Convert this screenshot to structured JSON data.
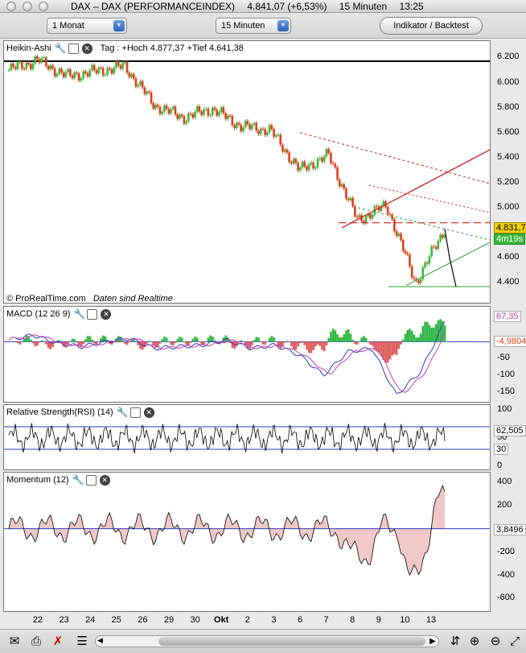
{
  "window": {
    "instrument": "DAX – DAX (PERFORMANCEINDEX)",
    "price": "4.841,07 (+6,53%)",
    "interval_label": "15 Minuten",
    "time": "13:25"
  },
  "toolbar": {
    "period": "1 Monat",
    "interval": "15 Minuten",
    "indicator_button": "Indikator / Backtest"
  },
  "price_panel": {
    "title": "Heikin-Ashi",
    "info": "Tag : +Hoch 4.877,37 +Tief 4.641,38",
    "copyright": "© ProRealTime.com",
    "realtime": "Daten sind Realtime",
    "last_value": "4.831,7",
    "countdown": "4m19s",
    "axis": [
      "6.200",
      "6.000",
      "5.800",
      "5.600",
      "5.400",
      "5.200",
      "5.000",
      "4.600",
      "4.400"
    ],
    "ylim": [
      4280,
      6280
    ]
  },
  "macd_panel": {
    "title": "MACD (12 26 9)",
    "value_upper": "67,35",
    "value_lower": "-4,9804",
    "axis": [
      "-50",
      "-100",
      "-150"
    ],
    "ylim": [
      -170,
      90
    ]
  },
  "rsi_panel": {
    "title": "Relative Strength(RSI) (14)",
    "value": "62,505",
    "upper_level": "70",
    "lower_level": "30",
    "axis": [
      "100",
      "50",
      "0"
    ]
  },
  "momentum_panel": {
    "title": "Momentum (12)",
    "value": "3,8496",
    "axis": [
      "400",
      "200",
      "-200",
      "-400",
      "-600"
    ],
    "ylim": [
      -680,
      440
    ]
  },
  "date_axis": [
    "22",
    "23",
    "24",
    "25",
    "26",
    "29",
    "30",
    "Okt",
    "2",
    "3",
    "6",
    "7",
    "8",
    "9",
    "10",
    "13"
  ],
  "colors": {
    "up": "#3db83d",
    "down": "#e03d1b",
    "macd_line": "#2a3bbf",
    "signal_line": "#c23fb0",
    "hist_pos": "#36b84a",
    "hist_neg": "#e06060",
    "grid_line": "#2a3bbf"
  },
  "chart_data": {
    "type": "line",
    "title": "Heikin-Ashi",
    "x": [
      "22",
      "23",
      "24",
      "25",
      "26",
      "29",
      "30",
      "Okt",
      "2",
      "3",
      "6",
      "7",
      "8",
      "9",
      "10",
      "13"
    ],
    "series": [
      {
        "values": [
          6100,
          6180,
          6050,
          6090,
          6130,
          5820,
          5720,
          5790,
          5650,
          5620,
          5300,
          5420,
          4900,
          5020,
          4400,
          4830
        ]
      }
    ],
    "ylim": [
      4280,
      6280
    ]
  }
}
